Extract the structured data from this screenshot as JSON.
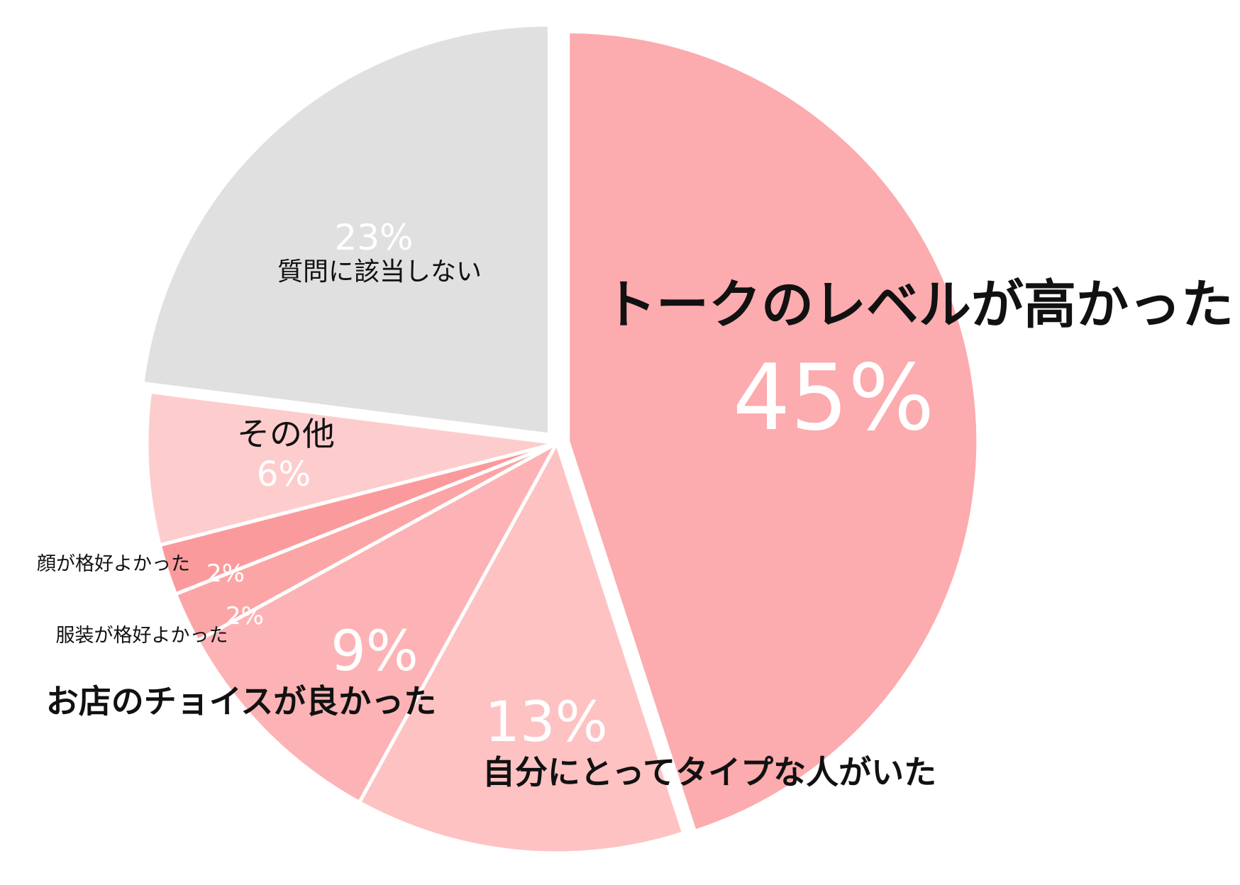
{
  "chart_data": {
    "type": "pie",
    "title": "",
    "slices": [
      {
        "label": "トークのレベルが高かった",
        "percent_label": "45%",
        "value": 45,
        "color": "#FCABAE",
        "exploded": true
      },
      {
        "label": "自分にとってタイプな人がいた",
        "percent_label": "13%",
        "value": 13,
        "color": "#FEC2C3"
      },
      {
        "label": "お店のチョイスが良かった",
        "percent_label": "9%",
        "value": 9,
        "color": "#FDB3B5"
      },
      {
        "label": "服装が格好よかった",
        "percent_label": "2%",
        "value": 2,
        "color": "#FCA5A6"
      },
      {
        "label": "顔が格好よかった",
        "percent_label": "2%",
        "value": 2,
        "color": "#FB9A9C"
      },
      {
        "label": "その他",
        "percent_label": "6%",
        "value": 6,
        "color": "#FDCDCE"
      },
      {
        "label": "質問に該当しない",
        "percent_label": "23%",
        "value": 23,
        "color": "#E0E0E0",
        "exploded": true
      }
    ]
  }
}
